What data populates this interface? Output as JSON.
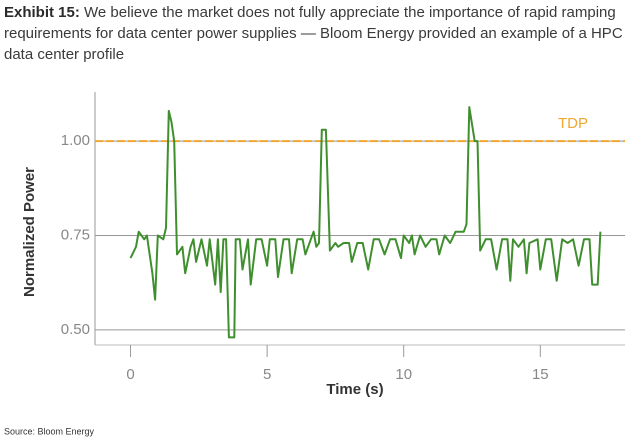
{
  "chart_data": {
    "type": "line",
    "exhibit_label": "Exhibit 15:",
    "title": "We believe the market does not fully appreciate the importance of rapid ramping requirements for data center power supplies — Bloom Energy provided an example of a HPC data center profile",
    "x_label": "Time (s)",
    "y_label": "Normalized Power",
    "source": "Source: Bloom Energy",
    "xlim": [
      -1.3,
      18.1
    ],
    "xticks": [
      0,
      5,
      10,
      15
    ],
    "ylim": [
      0.46,
      1.13
    ],
    "yticks": [
      {
        "value": 0.5,
        "label": "0.50"
      },
      {
        "value": 0.75,
        "label": "0.75"
      },
      {
        "value": 1,
        "label": "1.00"
      }
    ],
    "grid": true,
    "reference_lines": [
      {
        "value": 1,
        "label": "TDP",
        "color": "#f0a830"
      }
    ],
    "x": [
      0.0,
      0.2,
      0.3,
      0.5,
      0.6,
      0.8,
      0.9,
      1.0,
      1.2,
      1.3,
      1.4,
      1.5,
      1.6,
      1.7,
      1.9,
      2.0,
      2.2,
      2.3,
      2.4,
      2.6,
      2.8,
      2.9,
      3.1,
      3.2,
      3.3,
      3.4,
      3.5,
      3.6,
      3.8,
      3.85,
      4.0,
      4.1,
      4.3,
      4.4,
      4.6,
      4.8,
      5.0,
      5.1,
      5.3,
      5.4,
      5.6,
      5.8,
      5.9,
      6.1,
      6.3,
      6.4,
      6.6,
      6.7,
      6.8,
      6.9,
      7.0,
      7.15,
      7.3,
      7.5,
      7.6,
      7.8,
      8.0,
      8.1,
      8.3,
      8.5,
      8.7,
      8.9,
      9.1,
      9.3,
      9.5,
      9.7,
      9.9,
      10.0,
      10.2,
      10.3,
      10.4,
      10.6,
      10.8,
      11.0,
      11.2,
      11.3,
      11.5,
      11.7,
      11.9,
      12.2,
      12.3,
      12.4,
      12.6,
      12.7,
      12.8,
      13.0,
      13.2,
      13.4,
      13.6,
      13.8,
      13.9,
      14.0,
      14.2,
      14.4,
      14.5,
      14.6,
      14.9,
      15.0,
      15.2,
      15.4,
      15.6,
      15.8,
      16.0,
      16.2,
      16.4,
      16.6,
      16.8,
      16.9,
      17.1,
      17.2
    ],
    "series": [
      {
        "color": "#3f8f2f",
        "values": [
          0.69,
          0.72,
          0.76,
          0.74,
          0.75,
          0.65,
          0.58,
          0.75,
          0.74,
          0.77,
          1.08,
          1.05,
          1.0,
          0.7,
          0.72,
          0.65,
          0.72,
          0.74,
          0.68,
          0.74,
          0.67,
          0.74,
          0.62,
          0.74,
          0.6,
          0.74,
          0.74,
          0.48,
          0.48,
          0.74,
          0.74,
          0.66,
          0.74,
          0.62,
          0.74,
          0.74,
          0.67,
          0.74,
          0.74,
          0.64,
          0.74,
          0.74,
          0.65,
          0.74,
          0.74,
          0.7,
          0.74,
          0.76,
          0.72,
          0.73,
          1.03,
          1.03,
          0.71,
          0.73,
          0.72,
          0.73,
          0.73,
          0.68,
          0.73,
          0.73,
          0.66,
          0.74,
          0.74,
          0.7,
          0.74,
          0.74,
          0.69,
          0.75,
          0.73,
          0.75,
          0.7,
          0.75,
          0.72,
          0.74,
          0.74,
          0.7,
          0.75,
          0.73,
          0.76,
          0.76,
          0.78,
          1.09,
          1.0,
          1.0,
          0.71,
          0.74,
          0.74,
          0.66,
          0.74,
          0.74,
          0.63,
          0.74,
          0.72,
          0.74,
          0.65,
          0.73,
          0.74,
          0.66,
          0.74,
          0.74,
          0.63,
          0.74,
          0.73,
          0.74,
          0.67,
          0.74,
          0.74,
          0.62,
          0.62,
          0.76
        ]
      }
    ]
  }
}
